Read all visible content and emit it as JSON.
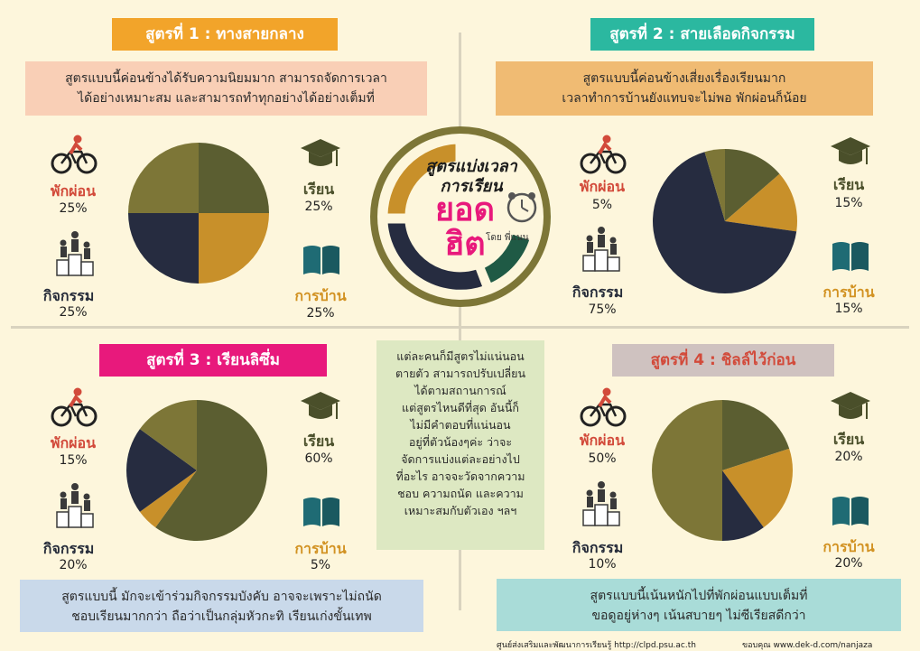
{
  "center": {
    "line1": "สูตรแบ่งเวลา",
    "line2": "การเรียน",
    "hit1": "ยอด",
    "hit2": "ฮิต",
    "by": "โดย พี่แนน"
  },
  "labels": {
    "rest": "พักผ่อน",
    "study": "เรียน",
    "activity": "กิจกรรม",
    "homework": "การบ้าน"
  },
  "formulas": [
    {
      "title": "สูตรที่ 1 : ทางสายกลาง",
      "desc1": "สูตรแบบนี้ค่อนข้างได้รับความนิยมมาก สามารถจัดการเวลา",
      "desc2": "ได้อย่างเหมาะสม และสามารถทำทุกอย่างได้อย่างเต็มที่",
      "rest": "25%",
      "study": "25%",
      "activity": "25%",
      "homework": "25%"
    },
    {
      "title": "สูตรที่ 2 : สายเลือดกิจกรรม",
      "desc1": "สูตรแบบนี้ค่อนข้างเสี่ยงเรื่องเรียนมาก",
      "desc2": "เวลาทำการบ้านยังแทบจะไม่พอ พักผ่อนก็น้อย",
      "rest": "5%",
      "study": "15%",
      "activity": "75%",
      "homework": "15%"
    },
    {
      "title": "สูตรที่ 3 : เรียนลิซึ่ม",
      "desc1": "สูตรแบบนี้ มักจะเข้าร่วมกิจกรรมบังคับ อาจจะเพราะไม่ถนัด",
      "desc2": "ชอบเรียนมากกว่า ถือว่าเป็นกลุ่มหัวกะทิ เรียนเก่งขั้นเทพ",
      "rest": "15%",
      "study": "60%",
      "activity": "20%",
      "homework": "5%"
    },
    {
      "title": "สูตรที่ 4 : ชิลล์ไว้ก่อน",
      "desc1": "สูตรแบบนี้เน้นหนักไปที่พักผ่อนแบบเต็มที่",
      "desc2": "ขอดูอยู่ห่างๆ เน้นสบายๆ ไม่ซีเรียสดีกว่า",
      "rest": "50%",
      "study": "20%",
      "activity": "10%",
      "homework": "20%"
    }
  ],
  "middle_text": [
    "แต่ละคนก็มีสูตรไม่แน่นอน",
    "ตายตัว สามารถปรับเปลี่ยน",
    "ได้ตามสถานการณ์",
    "แต่สูตรไหนดีที่สุด อันนี้ก็",
    "ไม่มีคำตอบที่แน่นอน",
    "อยู่ที่ตัวน้องๆค่ะ ว่าจะ",
    "จัดการแบ่งแต่ละอย่างไป",
    "ที่อะไร อาจจะวัดจากความ",
    "ชอบ ความถนัด และความ",
    "เหมาะสมกับตัวเอง ฯลฯ"
  ],
  "footer": {
    "left": "ศูนย์ส่งเสริมและพัฒนาการเรียนรู้ http://clpd.psu.ac.th",
    "right": "ขอบคุณ www.dek-d.com/nanjaza"
  },
  "colors": {
    "background": "#fdf6dc",
    "study": "#5b5e31",
    "homework": "#c8902a",
    "activity": "#262c40",
    "rest": "#7d7637",
    "center_green": "#1f5a45",
    "title1": "#f2a42a",
    "title2": "#2bb8a0",
    "title3": "#e8197c",
    "title4": "#cfc2c0"
  },
  "chart_data": [
    {
      "type": "pie",
      "title": "สูตรที่ 1 : ทางสายกลาง",
      "categories": [
        "เรียน",
        "การบ้าน",
        "กิจกรรม",
        "พักผ่อน"
      ],
      "values": [
        25,
        25,
        25,
        25
      ]
    },
    {
      "type": "pie",
      "title": "สูตรที่ 2 : สายเลือดกิจกรรม",
      "categories": [
        "เรียน",
        "การบ้าน",
        "กิจกรรม",
        "พักผ่อน"
      ],
      "values": [
        15,
        15,
        75,
        5
      ]
    },
    {
      "type": "pie",
      "title": "สูตรที่ 3 : เรียนลิซึ่ม",
      "categories": [
        "เรียน",
        "การบ้าน",
        "กิจกรรม",
        "พักผ่อน"
      ],
      "values": [
        60,
        5,
        20,
        15
      ]
    },
    {
      "type": "pie",
      "title": "สูตรที่ 4 : ชิลล์ไว้ก่อน",
      "categories": [
        "เรียน",
        "การบ้าน",
        "กิจกรรม",
        "พักผ่อน"
      ],
      "values": [
        20,
        20,
        10,
        50
      ]
    }
  ]
}
